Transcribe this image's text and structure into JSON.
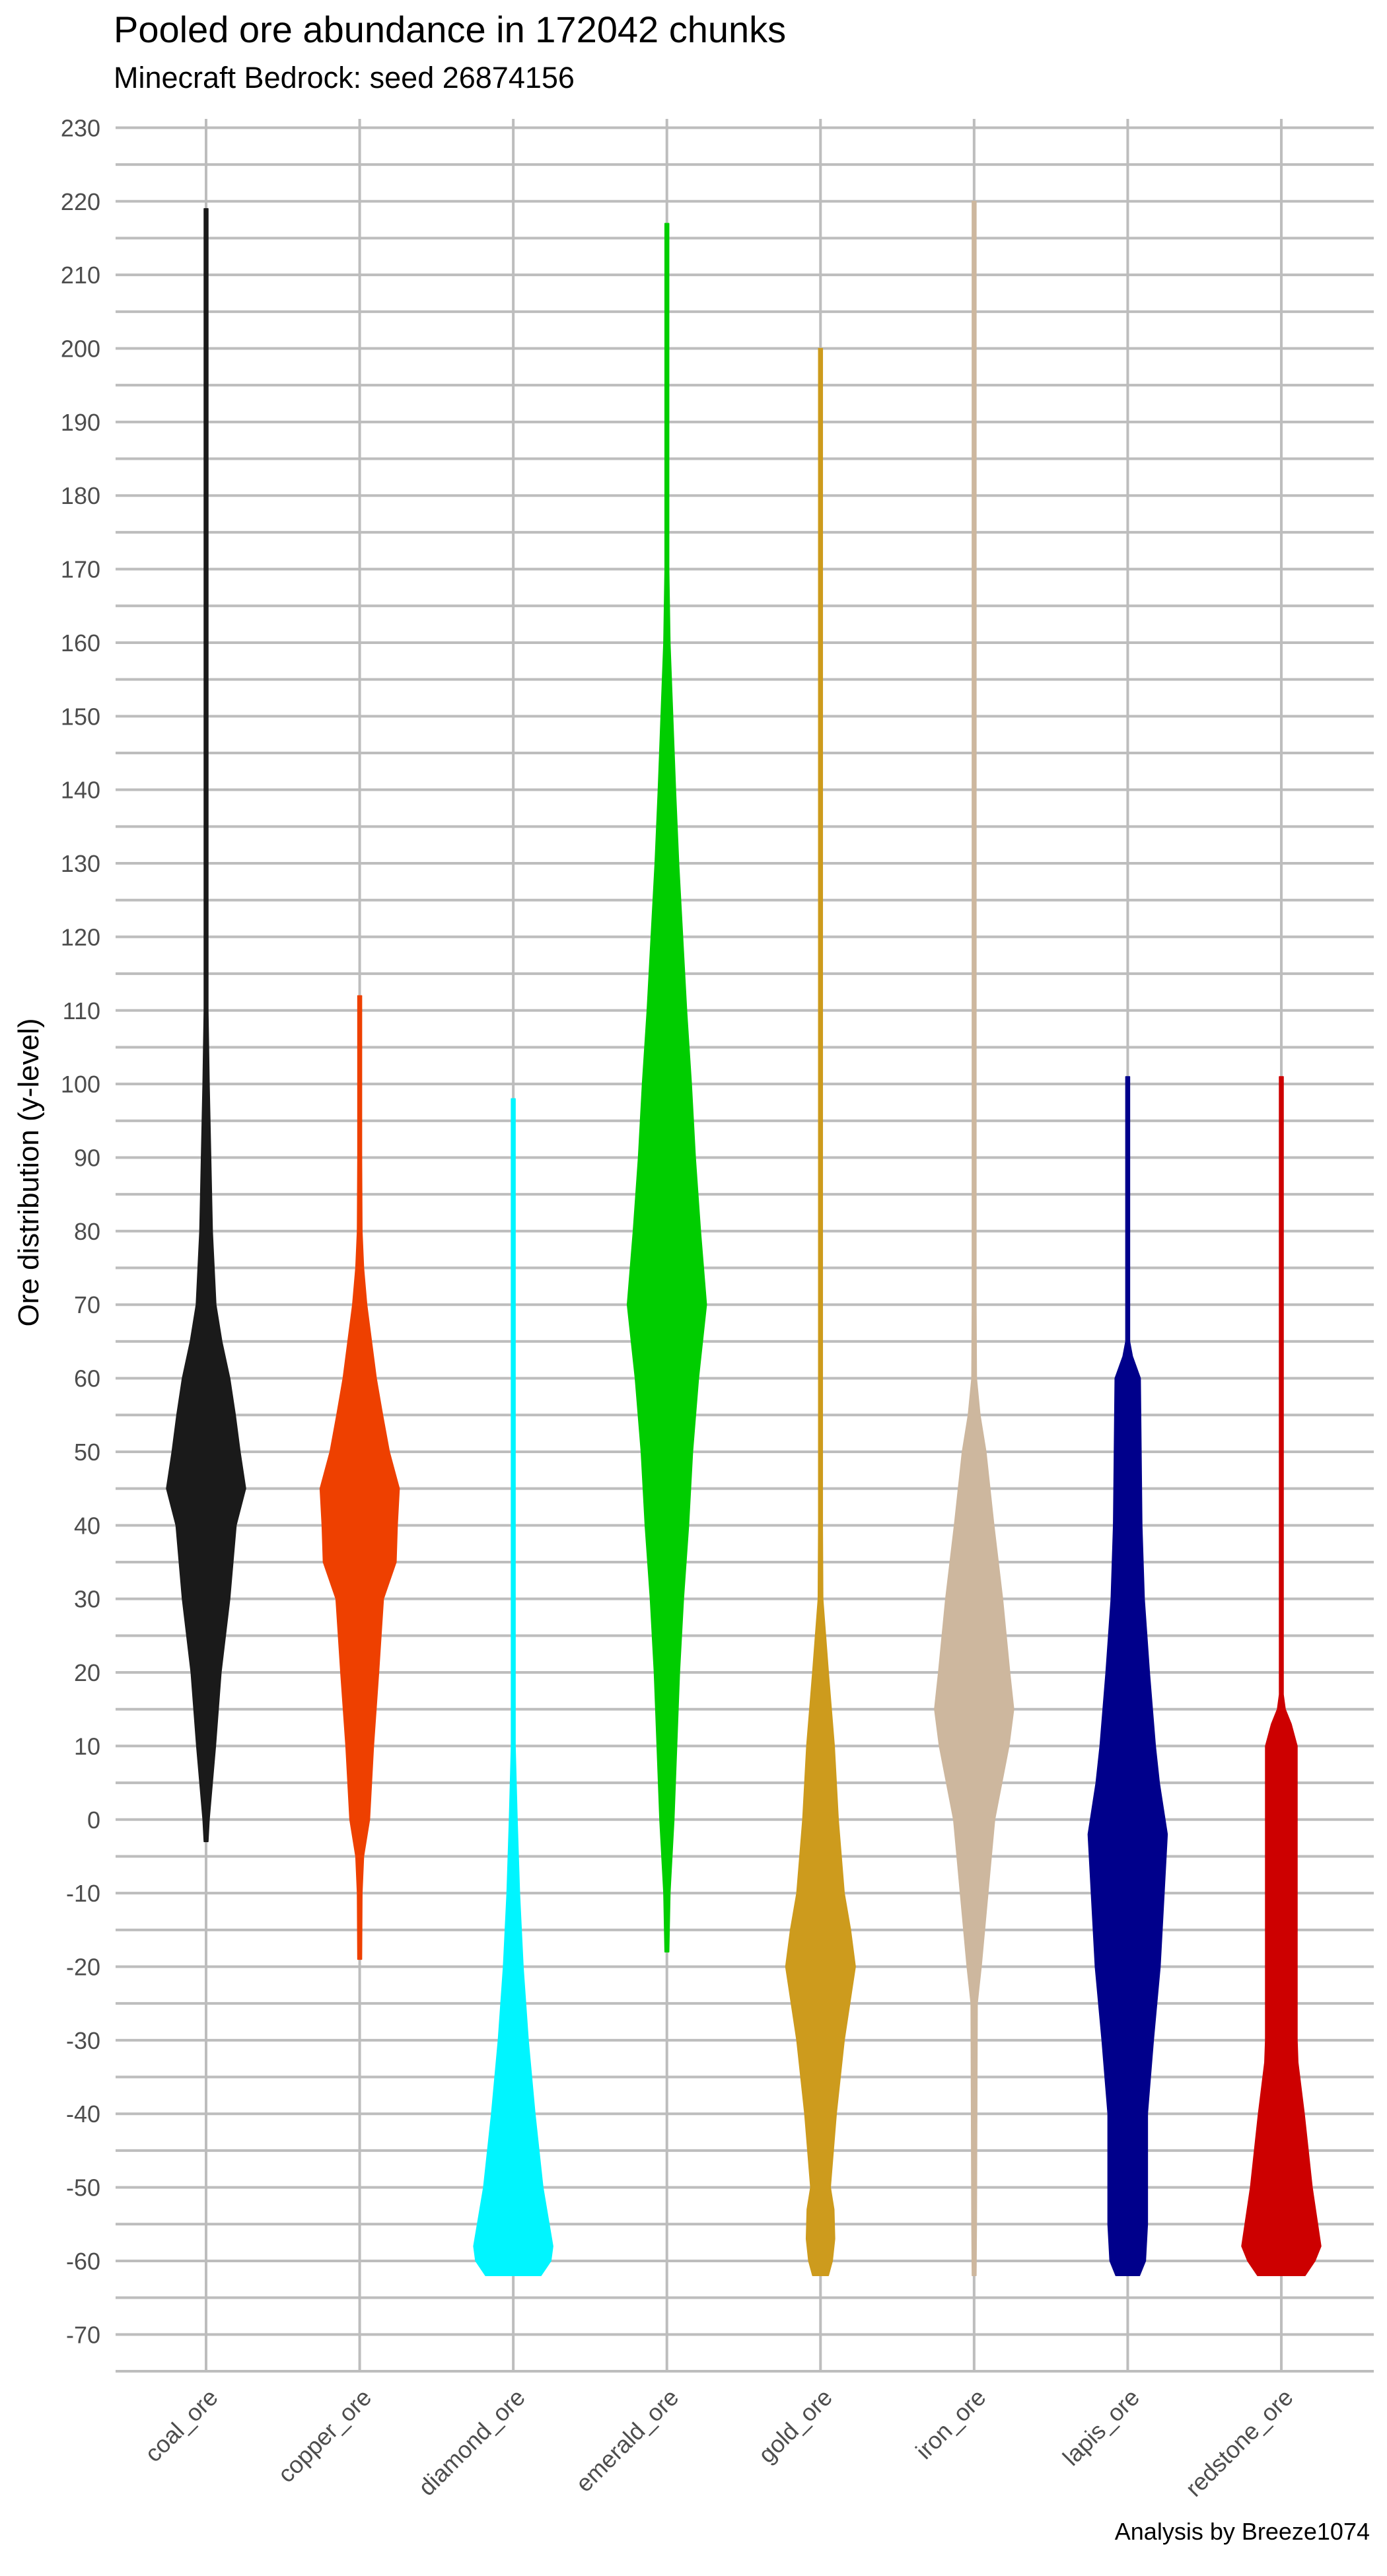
{
  "chart_data": {
    "type": "violin",
    "title": "Pooled ore abundance in 172042 chunks",
    "subtitle": "Minecraft Bedrock: seed 26874156",
    "ylabel": "Ore distribution (y-level)",
    "caption": "Analysis by Breeze1074",
    "ylim": [
      -75,
      233
    ],
    "yticks": [
      -70,
      -60,
      -50,
      -40,
      -30,
      -20,
      -10,
      0,
      10,
      20,
      30,
      40,
      50,
      60,
      70,
      80,
      90,
      100,
      110,
      120,
      130,
      140,
      150,
      160,
      170,
      180,
      190,
      200,
      210,
      220,
      230
    ],
    "grid": true,
    "categories": [
      "coal_ore",
      "copper_ore",
      "diamond_ore",
      "emerald_ore",
      "gold_ore",
      "iron_ore",
      "lapis_ore",
      "redstone_ore"
    ],
    "series": [
      {
        "category": "coal_ore",
        "color": "#1a1a1a",
        "min": -3,
        "max": 219,
        "profile": [
          [
            -3,
            0.02
          ],
          [
            0,
            0.08
          ],
          [
            10,
            0.24
          ],
          [
            20,
            0.38
          ],
          [
            30,
            0.6
          ],
          [
            35,
            0.68
          ],
          [
            40,
            0.76
          ],
          [
            45,
            1.0
          ],
          [
            50,
            0.86
          ],
          [
            55,
            0.74
          ],
          [
            60,
            0.6
          ],
          [
            65,
            0.4
          ],
          [
            70,
            0.25
          ],
          [
            80,
            0.16
          ],
          [
            90,
            0.12
          ],
          [
            100,
            0.08
          ],
          [
            110,
            0.05
          ],
          [
            115,
            0.04
          ],
          [
            120,
            0.03
          ],
          [
            130,
            0.02
          ],
          [
            150,
            0.01
          ],
          [
            219,
            0.01
          ]
        ]
      },
      {
        "category": "copper_ore",
        "color": "#ee4000",
        "min": -19,
        "max": 112,
        "profile": [
          [
            -19,
            0.03
          ],
          [
            -10,
            0.06
          ],
          [
            -5,
            0.1
          ],
          [
            0,
            0.25
          ],
          [
            10,
            0.35
          ],
          [
            20,
            0.48
          ],
          [
            30,
            0.6
          ],
          [
            35,
            0.92
          ],
          [
            40,
            0.95
          ],
          [
            45,
            1.0
          ],
          [
            50,
            0.75
          ],
          [
            55,
            0.58
          ],
          [
            60,
            0.42
          ],
          [
            65,
            0.3
          ],
          [
            70,
            0.18
          ],
          [
            75,
            0.1
          ],
          [
            80,
            0.06
          ],
          [
            90,
            0.04
          ],
          [
            100,
            0.03
          ],
          [
            112,
            0.02
          ]
        ]
      },
      {
        "category": "diamond_ore",
        "color": "#00f5ff",
        "min": -62,
        "max": 98,
        "profile": [
          [
            -62,
            0.7
          ],
          [
            -60,
            0.95
          ],
          [
            -58,
            1.0
          ],
          [
            -50,
            0.75
          ],
          [
            -40,
            0.55
          ],
          [
            -30,
            0.38
          ],
          [
            -20,
            0.25
          ],
          [
            -10,
            0.16
          ],
          [
            0,
            0.1
          ],
          [
            10,
            0.05
          ],
          [
            15,
            0.03
          ],
          [
            20,
            0.015
          ],
          [
            40,
            0.01
          ],
          [
            98,
            0.008
          ]
        ]
      },
      {
        "category": "emerald_ore",
        "color": "#00cd00",
        "min": -18,
        "max": 217,
        "profile": [
          [
            -18,
            0.03
          ],
          [
            -10,
            0.08
          ],
          [
            0,
            0.18
          ],
          [
            10,
            0.25
          ],
          [
            20,
            0.32
          ],
          [
            30,
            0.42
          ],
          [
            40,
            0.55
          ],
          [
            50,
            0.65
          ],
          [
            60,
            0.8
          ],
          [
            70,
            1.0
          ],
          [
            80,
            0.85
          ],
          [
            90,
            0.72
          ],
          [
            100,
            0.62
          ],
          [
            110,
            0.5
          ],
          [
            120,
            0.4
          ],
          [
            130,
            0.3
          ],
          [
            140,
            0.22
          ],
          [
            150,
            0.15
          ],
          [
            160,
            0.08
          ],
          [
            170,
            0.04
          ],
          [
            180,
            0.02
          ],
          [
            200,
            0.01
          ],
          [
            217,
            0.01
          ]
        ]
      },
      {
        "category": "gold_ore",
        "color": "#cd9b1d",
        "min": -62,
        "max": 200,
        "profile": [
          [
            -62,
            0.2
          ],
          [
            -60,
            0.3
          ],
          [
            -57,
            0.36
          ],
          [
            -53,
            0.34
          ],
          [
            -50,
            0.25
          ],
          [
            -40,
            0.4
          ],
          [
            -30,
            0.6
          ],
          [
            -20,
            0.88
          ],
          [
            -15,
            0.76
          ],
          [
            -10,
            0.6
          ],
          [
            0,
            0.45
          ],
          [
            10,
            0.35
          ],
          [
            20,
            0.2
          ],
          [
            30,
            0.06
          ],
          [
            40,
            0.03
          ],
          [
            60,
            0.015
          ],
          [
            100,
            0.01
          ],
          [
            200,
            0.008
          ]
        ]
      },
      {
        "category": "iron_ore",
        "color": "#cdb79e",
        "min": -62,
        "max": 220,
        "profile": [
          [
            -62,
            0.04
          ],
          [
            -55,
            0.06
          ],
          [
            -40,
            0.07
          ],
          [
            -25,
            0.08
          ],
          [
            -20,
            0.18
          ],
          [
            -10,
            0.35
          ],
          [
            0,
            0.52
          ],
          [
            10,
            0.88
          ],
          [
            15,
            1.0
          ],
          [
            20,
            0.9
          ],
          [
            30,
            0.72
          ],
          [
            40,
            0.5
          ],
          [
            50,
            0.3
          ],
          [
            55,
            0.15
          ],
          [
            60,
            0.06
          ],
          [
            70,
            0.03
          ],
          [
            80,
            0.02
          ],
          [
            100,
            0.015
          ],
          [
            150,
            0.01
          ],
          [
            220,
            0.008
          ]
        ]
      },
      {
        "category": "lapis_ore",
        "color": "#00008b",
        "min": -62,
        "max": 101,
        "profile": [
          [
            -62,
            0.3
          ],
          [
            -60,
            0.45
          ],
          [
            -55,
            0.5
          ],
          [
            -40,
            0.5
          ],
          [
            -30,
            0.65
          ],
          [
            -20,
            0.82
          ],
          [
            -10,
            0.92
          ],
          [
            -2,
            1.0
          ],
          [
            5,
            0.8
          ],
          [
            10,
            0.7
          ],
          [
            20,
            0.55
          ],
          [
            30,
            0.42
          ],
          [
            40,
            0.36
          ],
          [
            50,
            0.34
          ],
          [
            60,
            0.32
          ],
          [
            63,
            0.12
          ],
          [
            65,
            0.05
          ],
          [
            70,
            0.03
          ],
          [
            101,
            0.02
          ]
        ]
      },
      {
        "category": "redstone_ore",
        "color": "#cd0000",
        "min": -62,
        "max": 101,
        "profile": [
          [
            -62,
            0.6
          ],
          [
            -60,
            0.85
          ],
          [
            -58,
            1.0
          ],
          [
            -50,
            0.78
          ],
          [
            -40,
            0.58
          ],
          [
            -33,
            0.42
          ],
          [
            -30,
            0.4
          ],
          [
            0,
            0.4
          ],
          [
            10,
            0.4
          ],
          [
            13,
            0.25
          ],
          [
            15,
            0.1
          ],
          [
            17,
            0.02
          ],
          [
            30,
            0.015
          ],
          [
            60,
            0.01
          ],
          [
            101,
            0.01
          ]
        ]
      }
    ]
  }
}
